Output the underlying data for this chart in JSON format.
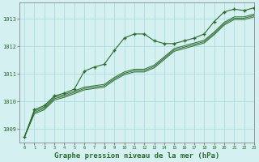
{
  "background_color": "#d4f0f0",
  "grid_color": "#aadddd",
  "line_color": "#2d6b2d",
  "marker_color": "#2d6b2d",
  "xlabel": "Graphe pression niveau de la mer (hPa)",
  "xlabel_fontsize": 6.5,
  "ylabel_ticks": [
    1009,
    1010,
    1011,
    1012,
    1013
  ],
  "xlim": [
    -0.5,
    23
  ],
  "ylim": [
    1008.5,
    1013.6
  ],
  "series": [
    {
      "x": [
        0,
        1,
        2,
        3,
        4,
        5,
        6,
        7,
        8,
        9,
        10,
        11,
        12,
        13,
        14,
        15,
        16,
        17,
        18,
        19,
        20,
        21,
        22,
        23
      ],
      "y": [
        1008.7,
        1009.7,
        1009.85,
        1010.2,
        1010.3,
        1010.45,
        1011.1,
        1011.25,
        1011.35,
        1011.85,
        1012.3,
        1012.45,
        1012.45,
        1012.2,
        1012.1,
        1012.1,
        1012.2,
        1012.3,
        1012.45,
        1012.9,
        1013.25,
        1013.35,
        1013.3,
        1013.4
      ],
      "marker": true
    },
    {
      "x": [
        0,
        1,
        2,
        3,
        4,
        5,
        6,
        7,
        8,
        9,
        10,
        11,
        12,
        13,
        14,
        15,
        16,
        17,
        18,
        19,
        20,
        21,
        22,
        23
      ],
      "y": [
        1008.7,
        1009.65,
        1009.8,
        1010.15,
        1010.25,
        1010.38,
        1010.52,
        1010.57,
        1010.62,
        1010.87,
        1011.07,
        1011.17,
        1011.17,
        1011.32,
        1011.62,
        1011.92,
        1012.02,
        1012.12,
        1012.22,
        1012.52,
        1012.87,
        1013.07,
        1013.07,
        1013.17
      ],
      "marker": false
    },
    {
      "x": [
        0,
        1,
        2,
        3,
        4,
        5,
        6,
        7,
        8,
        9,
        10,
        11,
        12,
        13,
        14,
        15,
        16,
        17,
        18,
        19,
        20,
        21,
        22,
        23
      ],
      "y": [
        1008.7,
        1009.6,
        1009.75,
        1010.1,
        1010.2,
        1010.33,
        1010.47,
        1010.52,
        1010.57,
        1010.82,
        1011.02,
        1011.12,
        1011.12,
        1011.27,
        1011.57,
        1011.87,
        1011.97,
        1012.07,
        1012.17,
        1012.47,
        1012.82,
        1013.02,
        1013.02,
        1013.12
      ],
      "marker": false
    },
    {
      "x": [
        0,
        1,
        2,
        3,
        4,
        5,
        6,
        7,
        8,
        9,
        10,
        11,
        12,
        13,
        14,
        15,
        16,
        17,
        18,
        19,
        20,
        21,
        22,
        23
      ],
      "y": [
        1008.7,
        1009.55,
        1009.7,
        1010.05,
        1010.15,
        1010.28,
        1010.42,
        1010.47,
        1010.52,
        1010.77,
        1010.97,
        1011.07,
        1011.07,
        1011.22,
        1011.52,
        1011.82,
        1011.92,
        1012.02,
        1012.12,
        1012.42,
        1012.77,
        1012.97,
        1012.97,
        1013.07
      ],
      "marker": false
    }
  ]
}
